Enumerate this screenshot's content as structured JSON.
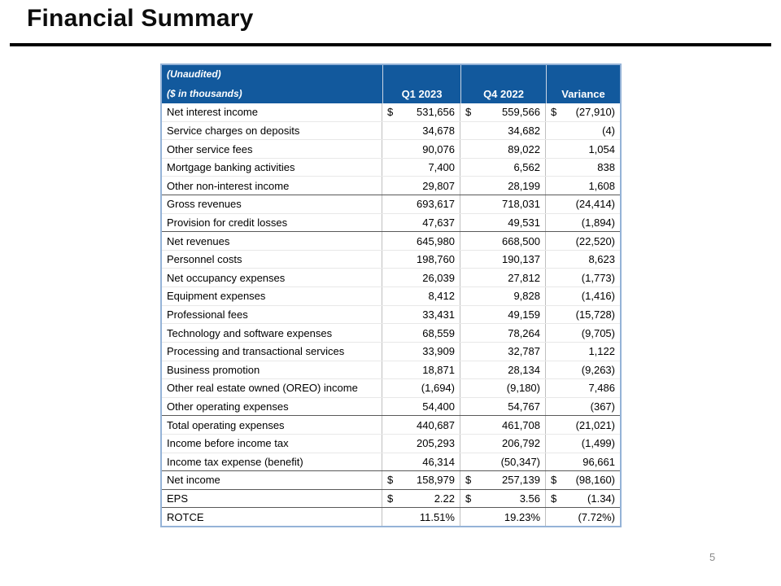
{
  "slide": {
    "title": "Financial Summary",
    "page_number": "5"
  },
  "table": {
    "header": {
      "line1": "(Unaudited)",
      "line2": "($ in thousands)",
      "columns": [
        "Q1 2023",
        "Q4 2022",
        "Variance"
      ]
    },
    "rows": [
      {
        "label": "Net interest income",
        "d": "$",
        "q1": "531,656",
        "q4": "559,566",
        "var": "(27,910)",
        "section": false
      },
      {
        "label": "Service charges on deposits",
        "d": "",
        "q1": "34,678",
        "q4": "34,682",
        "var": "(4)",
        "section": false
      },
      {
        "label": "Other service fees",
        "d": "",
        "q1": "90,076",
        "q4": "89,022",
        "var": "1,054",
        "section": false
      },
      {
        "label": "Mortgage banking activities",
        "d": "",
        "q1": "7,400",
        "q4": "6,562",
        "var": "838",
        "section": false
      },
      {
        "label": "Other non-interest income",
        "d": "",
        "q1": "29,807",
        "q4": "28,199",
        "var": "1,608",
        "section": false
      },
      {
        "label": "Gross revenues",
        "d": "",
        "q1": "693,617",
        "q4": "718,031",
        "var": "(24,414)",
        "section": true
      },
      {
        "label": "Provision for credit losses",
        "d": "",
        "q1": "47,637",
        "q4": "49,531",
        "var": "(1,894)",
        "section": false
      },
      {
        "label": "Net revenues",
        "d": "",
        "q1": "645,980",
        "q4": "668,500",
        "var": "(22,520)",
        "section": true
      },
      {
        "label": "Personnel costs",
        "d": "",
        "q1": "198,760",
        "q4": "190,137",
        "var": "8,623",
        "section": false
      },
      {
        "label": "Net occupancy expenses",
        "d": "",
        "q1": "26,039",
        "q4": "27,812",
        "var": "(1,773)",
        "section": false
      },
      {
        "label": "Equipment expenses",
        "d": "",
        "q1": "8,412",
        "q4": "9,828",
        "var": "(1,416)",
        "section": false
      },
      {
        "label": "Professional fees",
        "d": "",
        "q1": "33,431",
        "q4": "49,159",
        "var": "(15,728)",
        "section": false
      },
      {
        "label": "Technology and software expenses",
        "d": "",
        "q1": "68,559",
        "q4": "78,264",
        "var": "(9,705)",
        "section": false
      },
      {
        "label": "Processing and transactional services",
        "d": "",
        "q1": "33,909",
        "q4": "32,787",
        "var": "1,122",
        "section": false
      },
      {
        "label": "Business promotion",
        "d": "",
        "q1": "18,871",
        "q4": "28,134",
        "var": "(9,263)",
        "section": false
      },
      {
        "label": "Other real estate owned (OREO) income",
        "d": "",
        "q1": "(1,694)",
        "q4": "(9,180)",
        "var": "7,486",
        "section": false
      },
      {
        "label": "Other operating expenses",
        "d": "",
        "q1": "54,400",
        "q4": "54,767",
        "var": "(367)",
        "section": false
      },
      {
        "label": "Total operating expenses",
        "d": "",
        "q1": "440,687",
        "q4": "461,708",
        "var": "(21,021)",
        "section": true
      },
      {
        "label": "Income before income tax",
        "d": "",
        "q1": "205,293",
        "q4": "206,792",
        "var": "(1,499)",
        "section": false
      },
      {
        "label": "Income tax expense (benefit)",
        "d": "",
        "q1": "46,314",
        "q4": "(50,347)",
        "var": "96,661",
        "section": false
      },
      {
        "label": "Net income",
        "d": "$",
        "q1": "158,979",
        "q4": "257,139",
        "var": "(98,160)",
        "section": true
      },
      {
        "label": "EPS",
        "d": "$",
        "q1": "2.22",
        "q4": "3.56",
        "var": "(1.34)",
        "section": true
      },
      {
        "label": "ROTCE",
        "d": "",
        "q1": "11.51%",
        "q4": "19.23%",
        "var": "(7.72%)",
        "section": true
      }
    ]
  },
  "colors": {
    "header_bg": "#12599D",
    "header_text": "#FFFFFF",
    "outer_border": "#95B3D7",
    "column_rule": "#BFBFBF",
    "row_rule": "#E8E8E8",
    "section_rule": "#595959",
    "title_rule": "#000000",
    "page_number": "#8A8A8A"
  }
}
